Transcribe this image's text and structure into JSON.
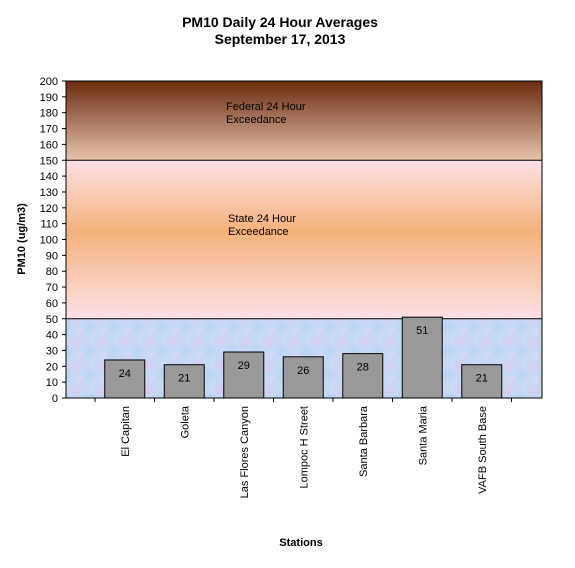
{
  "chart_data": {
    "type": "bar",
    "title": "PM10 Daily 24 Hour Averages",
    "subtitle": "September 17, 2013",
    "xlabel": "Stations",
    "ylabel": "PM10 (ug/m3)",
    "ylim": [
      0,
      200
    ],
    "yticks": [
      0,
      10,
      20,
      30,
      40,
      50,
      60,
      70,
      80,
      90,
      100,
      110,
      120,
      130,
      140,
      150,
      160,
      170,
      180,
      190,
      200
    ],
    "categories": [
      "El Capitan",
      "Goleta",
      "Las Flores Canyon",
      "Lompoc H Street",
      "Santa Barbara",
      "Santa Maria",
      "VAFB South Base"
    ],
    "values": [
      24,
      21,
      29,
      26,
      28,
      51,
      21
    ],
    "data_labels": [
      "24",
      "21",
      "29",
      "26",
      "28",
      "51",
      "21"
    ],
    "bar_color": "#999999",
    "bands": [
      {
        "label_lines": [
          "Federal 24 Hour",
          "Exceedance"
        ],
        "from": 150,
        "to": 200,
        "color_top": "#6b2a0e",
        "color_bottom": "#e8c4ae"
      },
      {
        "label_lines": [
          "State 24 Hour",
          "Exceedance"
        ],
        "from": 50,
        "to": 150,
        "color_top": "#fde0e8",
        "color_mid": "#f5b27a",
        "color_bottom": "#fde0e8"
      },
      {
        "label_lines": [],
        "from": 0,
        "to": 50,
        "color": "#c9d8f2"
      }
    ],
    "grid": false,
    "legend": "none"
  }
}
